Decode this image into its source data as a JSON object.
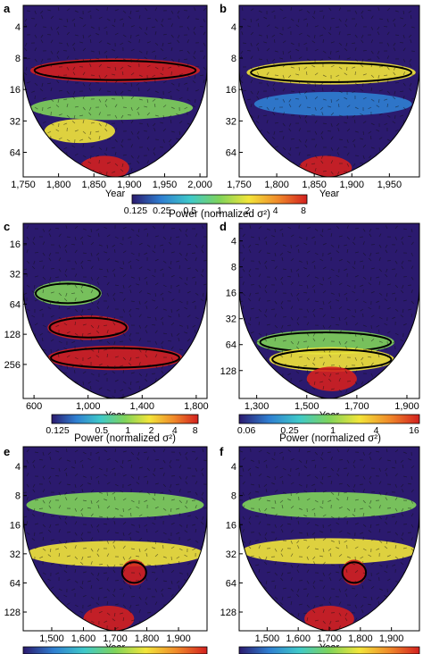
{
  "colors": {
    "low": "#2b1a6e",
    "mid_blue": "#2f7fd1",
    "cyan": "#3fc9c9",
    "green": "#7fd35a",
    "yellow": "#f2e53a",
    "orange": "#f08a2a",
    "red": "#d3201f",
    "contour": "#000000"
  },
  "chart_data": [
    {
      "type": "heatmap",
      "panel": "a",
      "xlabel": "Year",
      "x_ticks": [
        "1,750",
        "1,800",
        "1,850",
        "1,900",
        "1,950",
        "2,000"
      ],
      "x_tick_values": [
        1750,
        1800,
        1850,
        1900,
        1950,
        2000
      ],
      "xlim": [
        1750,
        2010
      ],
      "y_ticks": [
        "4",
        "8",
        "16",
        "32",
        "64"
      ],
      "y_tick_values": [
        4,
        8,
        16,
        32,
        64
      ],
      "ylim": [
        2.5,
        110
      ],
      "y_scale": "log2-inverted",
      "bands": [
        {
          "period": 10.5,
          "x_start": 1760,
          "x_end": 2000,
          "power": 8,
          "significant": true
        },
        {
          "period": 24,
          "x_start": 1760,
          "x_end": 1990,
          "power": 2,
          "significant": false
        },
        {
          "period": 40,
          "x_start": 1780,
          "x_end": 1880,
          "power": 4,
          "significant": false
        },
        {
          "period": 90,
          "x_start": 1830,
          "x_end": 1900,
          "power": 8,
          "significant": false
        }
      ]
    },
    {
      "type": "heatmap",
      "panel": "b",
      "xlabel": "Year",
      "x_ticks": [
        "1,750",
        "1,800",
        "1,850",
        "1,900",
        "1,950"
      ],
      "x_tick_values": [
        1750,
        1800,
        1850,
        1900,
        1950
      ],
      "xlim": [
        1750,
        1990
      ],
      "y_ticks": [
        "4",
        "8",
        "16",
        "32",
        "64"
      ],
      "y_tick_values": [
        4,
        8,
        16,
        32,
        64
      ],
      "ylim": [
        2.5,
        110
      ],
      "y_scale": "log2-inverted",
      "bands": [
        {
          "period": 11,
          "x_start": 1760,
          "x_end": 1985,
          "power": 4,
          "significant": true
        },
        {
          "period": 22,
          "x_start": 1770,
          "x_end": 1980,
          "power": 1,
          "significant": false
        },
        {
          "period": 90,
          "x_start": 1830,
          "x_end": 1900,
          "power": 8,
          "significant": false
        }
      ]
    },
    {
      "type": "heatmap",
      "panel": "c",
      "xlabel": "Year",
      "x_ticks": [
        "600",
        "1,000",
        "1,400",
        "1,800"
      ],
      "x_tick_values": [
        600,
        1000,
        1400,
        1800
      ],
      "xlim": [
        520,
        1880
      ],
      "y_ticks": [
        "16",
        "32",
        "64",
        "128",
        "256"
      ],
      "y_tick_values": [
        16,
        32,
        64,
        128,
        256
      ],
      "ylim": [
        10,
        560
      ],
      "y_scale": "log2-inverted",
      "bands": [
        {
          "period": 50,
          "x_start": 600,
          "x_end": 1100,
          "power": 2,
          "significant": true
        },
        {
          "period": 110,
          "x_start": 700,
          "x_end": 1300,
          "power": 8,
          "significant": true
        },
        {
          "period": 220,
          "x_start": 700,
          "x_end": 1700,
          "power": 8,
          "significant": true
        }
      ]
    },
    {
      "type": "heatmap",
      "panel": "d",
      "xlabel": "Year",
      "x_ticks": [
        "1,300",
        "1,500",
        "1,700",
        "1,900"
      ],
      "x_tick_values": [
        1300,
        1500,
        1700,
        1900
      ],
      "xlim": [
        1230,
        1950
      ],
      "y_ticks": [
        "4",
        "8",
        "16",
        "32",
        "64",
        "128"
      ],
      "y_tick_values": [
        4,
        8,
        16,
        32,
        64,
        128
      ],
      "ylim": [
        2.5,
        270
      ],
      "y_scale": "log2-inverted",
      "bands": [
        {
          "period": 60,
          "x_start": 1300,
          "x_end": 1850,
          "power": 2,
          "significant": true
        },
        {
          "period": 95,
          "x_start": 1350,
          "x_end": 1850,
          "power": 4,
          "significant": true
        },
        {
          "period": 160,
          "x_start": 1500,
          "x_end": 1700,
          "power": 16,
          "significant": false
        }
      ]
    },
    {
      "type": "heatmap",
      "panel": "e",
      "xlabel": "Year",
      "x_ticks": [
        "1,500",
        "1,600",
        "1,700",
        "1,800",
        "1,900"
      ],
      "x_tick_values": [
        1500,
        1600,
        1700,
        1800,
        1900
      ],
      "xlim": [
        1410,
        1990
      ],
      "y_ticks": [
        "4",
        "8",
        "16",
        "32",
        "64",
        "128"
      ],
      "y_tick_values": [
        4,
        8,
        16,
        32,
        64,
        128
      ],
      "ylim": [
        2.5,
        200
      ],
      "y_scale": "log2-inverted",
      "bands": [
        {
          "period": 10,
          "x_start": 1420,
          "x_end": 1980,
          "power": 2,
          "significant": false
        },
        {
          "period": 32,
          "x_start": 1420,
          "x_end": 1980,
          "power": 4,
          "significant": false
        },
        {
          "period": 50,
          "x_start": 1720,
          "x_end": 1800,
          "power": 8,
          "significant": true
        },
        {
          "period": 150,
          "x_start": 1600,
          "x_end": 1760,
          "power": 8,
          "significant": false
        }
      ]
    },
    {
      "type": "heatmap",
      "panel": "f",
      "xlabel": "Year",
      "x_ticks": [
        "1,500",
        "1,600",
        "1,700",
        "1,800",
        "1,900"
      ],
      "x_tick_values": [
        1500,
        1600,
        1700,
        1800,
        1900
      ],
      "xlim": [
        1410,
        1990
      ],
      "y_ticks": [
        "4",
        "8",
        "16",
        "32",
        "64",
        "128"
      ],
      "y_tick_values": [
        4,
        8,
        16,
        32,
        64,
        128
      ],
      "ylim": [
        2.5,
        200
      ],
      "y_scale": "log2-inverted",
      "bands": [
        {
          "period": 10,
          "x_start": 1420,
          "x_end": 1980,
          "power": 2,
          "significant": false
        },
        {
          "period": 30,
          "x_start": 1420,
          "x_end": 1980,
          "power": 4,
          "significant": false
        },
        {
          "period": 50,
          "x_start": 1740,
          "x_end": 1820,
          "power": 8,
          "significant": true
        },
        {
          "period": 150,
          "x_start": 1620,
          "x_end": 1780,
          "power": 8,
          "significant": false
        }
      ]
    }
  ],
  "colorbars": [
    {
      "ticks": [
        "0.125",
        "0.25",
        "0.5",
        "1",
        "2",
        "4",
        "8"
      ],
      "label": "Power (normalized σ²)"
    },
    {
      "ticks": [
        "0.125",
        "0.5",
        "1",
        "2",
        "4",
        "8"
      ],
      "label": "Power (normalized σ²)"
    },
    {
      "ticks": [
        "0.06",
        "0.25",
        "1",
        "4",
        "16"
      ],
      "label": "Power (normalized σ²)"
    },
    {
      "ticks": [],
      "label": ""
    },
    {
      "ticks": [],
      "label": ""
    }
  ]
}
